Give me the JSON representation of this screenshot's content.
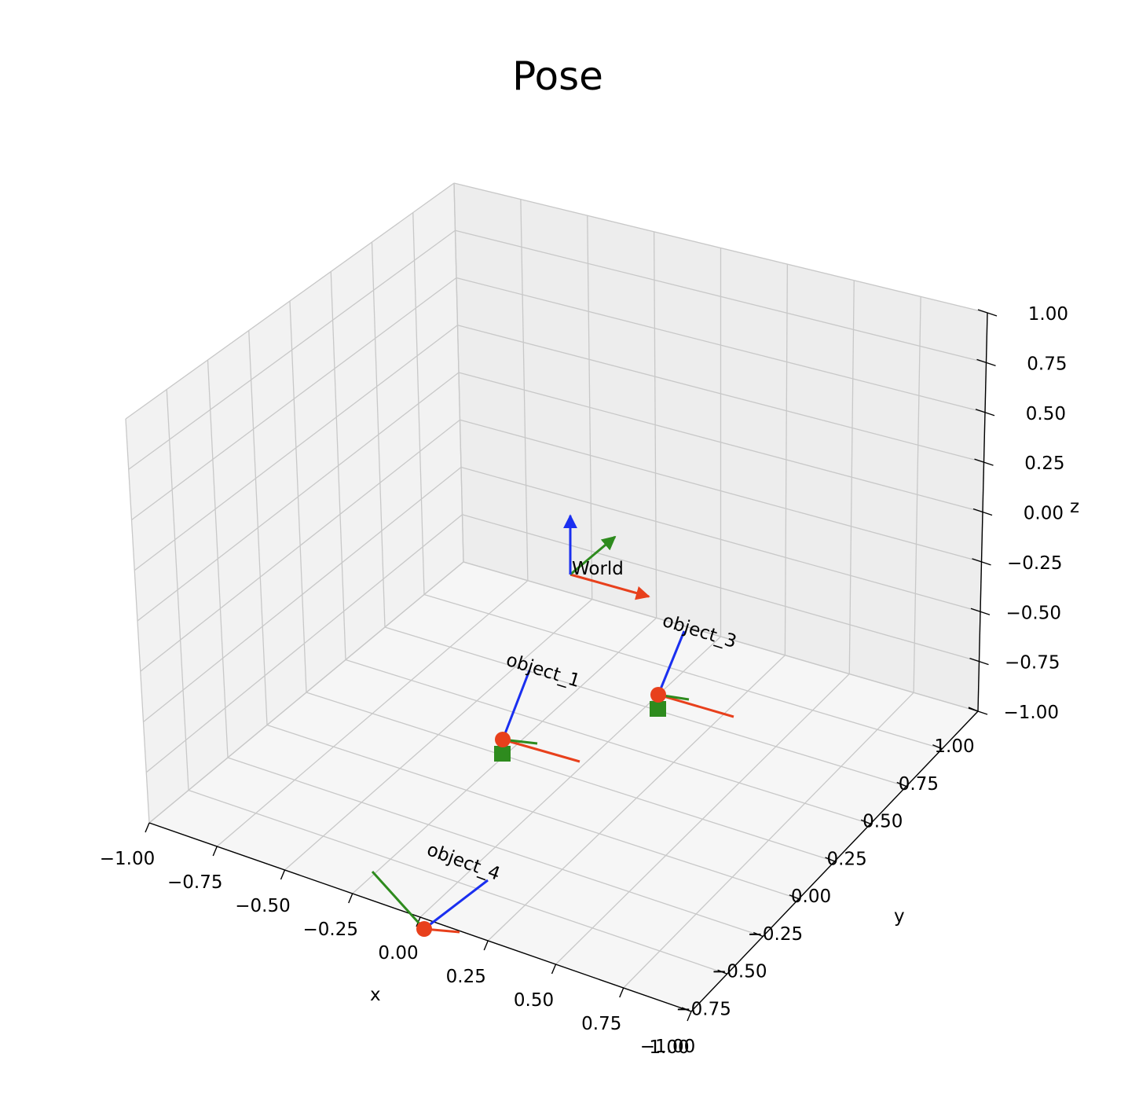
{
  "chart_data": {
    "type": "3d-pose",
    "title": "Pose",
    "xlabel": "x",
    "ylabel": "y",
    "zlabel": "z",
    "xlim": [
      -1,
      1
    ],
    "ylim": [
      -1,
      1
    ],
    "zlim": [
      -1,
      1
    ],
    "ticks": [
      -1.0,
      -0.75,
      -0.5,
      -0.25,
      0.0,
      0.25,
      0.5,
      0.75,
      1.0
    ],
    "x_tick_labels": [
      "−1.00",
      "−0.75",
      "−0.50",
      "−0.25",
      "0.00",
      "0.25",
      "0.50",
      "0.75",
      "1.00"
    ],
    "y_tick_labels": [
      "−1.00",
      "−0.75",
      "−0.50",
      "−0.25",
      "0.00",
      "0.25",
      "0.50",
      "0.75",
      "1.00"
    ],
    "z_tick_labels": [
      "−1.00",
      "−0.75",
      "−0.50",
      "−0.25",
      "0.00",
      "0.25",
      "0.50",
      "0.75",
      "1.00"
    ],
    "grid": true,
    "colors": {
      "x_axis": "#e8401c",
      "y_axis": "#2e8b1e",
      "z_axis": "#1a2ff0",
      "pane": "#f4f4f4",
      "grid": "#c8c8c8"
    },
    "frames": [
      {
        "name": "World",
        "position": [
          0.0,
          0.0,
          -0.25
        ],
        "axis_length": 0.25
      },
      {
        "name": "object_1",
        "position": [
          0.0,
          -0.4,
          -0.9
        ],
        "orientation": "tilted"
      },
      {
        "name": "object_3",
        "position": [
          0.5,
          0.0,
          -0.9
        ],
        "orientation": "tilted"
      },
      {
        "name": "object_4",
        "position": [
          0.0,
          -1.0,
          -1.0
        ],
        "orientation": "tilted"
      }
    ]
  }
}
